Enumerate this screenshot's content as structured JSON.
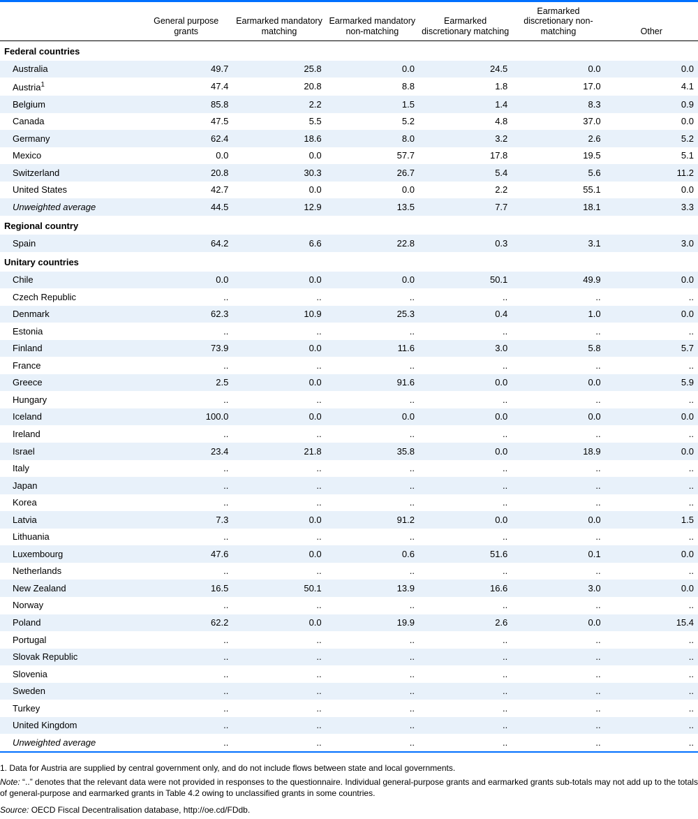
{
  "colors": {
    "accent": "#0070ff",
    "zebra_even": "#e8f1fa",
    "zebra_odd": "#ffffff",
    "text": "#000000"
  },
  "header": {
    "c0": "",
    "c1": "General purpose grants",
    "c2": "Earmarked mandatory matching",
    "c3": "Earmarked mandatory non-matching",
    "c4": "Earmarked discretionary matching",
    "c5": "Earmarked discretionary non-matching",
    "c6": "Other"
  },
  "sections": [
    {
      "title": "Federal countries",
      "rows": [
        {
          "name": "Australia",
          "v": [
            "49.7",
            "25.8",
            "0.0",
            "24.5",
            "0.0",
            "0.0"
          ]
        },
        {
          "name": "Austria",
          "sup": "1",
          "v": [
            "47.4",
            "20.8",
            "8.8",
            "1.8",
            "17.0",
            "4.1"
          ]
        },
        {
          "name": "Belgium",
          "v": [
            "85.8",
            "2.2",
            "1.5",
            "1.4",
            "8.3",
            "0.9"
          ]
        },
        {
          "name": "Canada",
          "v": [
            "47.5",
            "5.5",
            "5.2",
            "4.8",
            "37.0",
            "0.0"
          ]
        },
        {
          "name": "Germany",
          "v": [
            "62.4",
            "18.6",
            "8.0",
            "3.2",
            "2.6",
            "5.2"
          ]
        },
        {
          "name": "Mexico",
          "v": [
            "0.0",
            "0.0",
            "57.7",
            "17.8",
            "19.5",
            "5.1"
          ]
        },
        {
          "name": "Switzerland",
          "v": [
            "20.8",
            "30.3",
            "26.7",
            "5.4",
            "5.6",
            "11.2"
          ]
        },
        {
          "name": "United States",
          "v": [
            "42.7",
            "0.0",
            "0.0",
            "2.2",
            "55.1",
            "0.0"
          ]
        },
        {
          "name": "Unweighted average",
          "avg": true,
          "v": [
            "44.5",
            "12.9",
            "13.5",
            "7.7",
            "18.1",
            "3.3"
          ]
        }
      ]
    },
    {
      "title": "Regional country",
      "rows": [
        {
          "name": "Spain",
          "v": [
            "64.2",
            "6.6",
            "22.8",
            "0.3",
            "3.1",
            "3.0"
          ]
        }
      ]
    },
    {
      "title": "Unitary countries",
      "rows": [
        {
          "name": "Chile",
          "v": [
            "0.0",
            "0.0",
            "0.0",
            "50.1",
            "49.9",
            "0.0"
          ]
        },
        {
          "name": "Czech Republic",
          "v": [
            "..",
            "..",
            "..",
            "..",
            "..",
            ".."
          ]
        },
        {
          "name": "Denmark",
          "v": [
            "62.3",
            "10.9",
            "25.3",
            "0.4",
            "1.0",
            "0.0"
          ]
        },
        {
          "name": "Estonia",
          "v": [
            "..",
            "..",
            "..",
            "..",
            "..",
            ".."
          ]
        },
        {
          "name": "Finland",
          "v": [
            "73.9",
            "0.0",
            "11.6",
            "3.0",
            "5.8",
            "5.7"
          ]
        },
        {
          "name": "France",
          "v": [
            "..",
            "..",
            "..",
            "..",
            "..",
            ".."
          ]
        },
        {
          "name": "Greece",
          "v": [
            "2.5",
            "0.0",
            "91.6",
            "0.0",
            "0.0",
            "5.9"
          ]
        },
        {
          "name": "Hungary",
          "v": [
            "..",
            "..",
            "..",
            "..",
            "..",
            ".."
          ]
        },
        {
          "name": "Iceland",
          "v": [
            "100.0",
            "0.0",
            "0.0",
            "0.0",
            "0.0",
            "0.0"
          ]
        },
        {
          "name": "Ireland",
          "v": [
            "..",
            "..",
            "..",
            "..",
            "..",
            ".."
          ]
        },
        {
          "name": "Israel",
          "v": [
            "23.4",
            "21.8",
            "35.8",
            "0.0",
            "18.9",
            "0.0"
          ]
        },
        {
          "name": "Italy",
          "v": [
            "..",
            "..",
            "..",
            "..",
            "..",
            ".."
          ]
        },
        {
          "name": "Japan",
          "v": [
            "..",
            "..",
            "..",
            "..",
            "..",
            ".."
          ]
        },
        {
          "name": "Korea",
          "v": [
            "..",
            "..",
            "..",
            "..",
            "..",
            ".."
          ]
        },
        {
          "name": "Latvia",
          "v": [
            "7.3",
            "0.0",
            "91.2",
            "0.0",
            "0.0",
            "1.5"
          ]
        },
        {
          "name": "Lithuania",
          "v": [
            "..",
            "..",
            "..",
            "..",
            "..",
            ".."
          ]
        },
        {
          "name": "Luxembourg",
          "v": [
            "47.6",
            "0.0",
            "0.6",
            "51.6",
            "0.1",
            "0.0"
          ]
        },
        {
          "name": "Netherlands",
          "v": [
            "..",
            "..",
            "..",
            "..",
            "..",
            ".."
          ]
        },
        {
          "name": "New Zealand",
          "v": [
            "16.5",
            "50.1",
            "13.9",
            "16.6",
            "3.0",
            "0.0"
          ]
        },
        {
          "name": "Norway",
          "v": [
            "..",
            "..",
            "..",
            "..",
            "..",
            ".."
          ]
        },
        {
          "name": "Poland",
          "v": [
            "62.2",
            "0.0",
            "19.9",
            "2.6",
            "0.0",
            "15.4"
          ]
        },
        {
          "name": "Portugal",
          "v": [
            "..",
            "..",
            "..",
            "..",
            "..",
            ".."
          ]
        },
        {
          "name": "Slovak Republic",
          "v": [
            "..",
            "..",
            "..",
            "..",
            "..",
            ".."
          ]
        },
        {
          "name": "Slovenia",
          "v": [
            "..",
            "..",
            "..",
            "..",
            "..",
            ".."
          ]
        },
        {
          "name": "Sweden",
          "v": [
            "..",
            "..",
            "..",
            "..",
            "..",
            ".."
          ]
        },
        {
          "name": "Turkey",
          "v": [
            "..",
            "..",
            "..",
            "..",
            "..",
            ".."
          ]
        },
        {
          "name": "United Kingdom",
          "v": [
            "..",
            "..",
            "..",
            "..",
            "..",
            ".."
          ]
        },
        {
          "name": "Unweighted average",
          "avg": true,
          "v": [
            "..",
            "..",
            "..",
            "..",
            "..",
            ".."
          ]
        }
      ]
    }
  ],
  "footnotes": {
    "n1_label": "1.",
    "n1_text": "Data for Austria are supplied by central government only, and do not include flows between state and local governments.",
    "nn_label": "Note:",
    "nn_text": "“..” denotes that the relevant data were not provided in responses to the questionnaire. Individual general-purpose grants and earmarked grants sub-totals may not add up to the totals of general-purpose and earmarked grants in Table 4.2 owing to unclassified grants in some countries.",
    "src_label": "Source:",
    "src_text": "OECD Fiscal Decentralisation database, http://oe.cd/FDdb."
  }
}
